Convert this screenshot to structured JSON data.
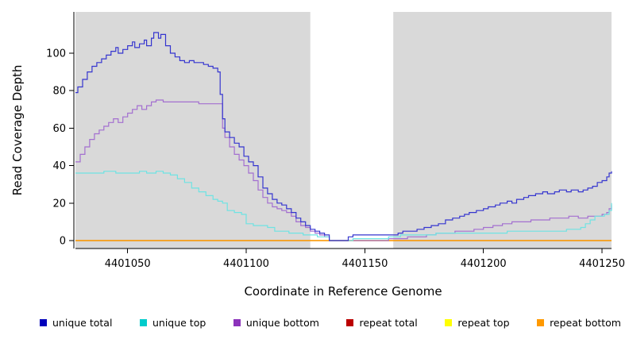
{
  "chart_data": {
    "type": "line",
    "title": "",
    "xlabel": "Coordinate in Reference Genome",
    "ylabel": "Read Coverage Depth",
    "xlim": [
      4401028,
      4401254
    ],
    "ylim": [
      0,
      113
    ],
    "x_ticks": [
      4401050,
      4401100,
      4401150,
      4401200,
      4401250
    ],
    "y_ticks": [
      0,
      20,
      40,
      60,
      80,
      100
    ],
    "plot_bg": "#d9d9d9",
    "gap_region": {
      "x0": 4401127,
      "x1": 4401162,
      "color": "#ffffff"
    },
    "step": true,
    "grid": false,
    "legend_position": "bottom",
    "series": [
      {
        "name": "repeat total",
        "color": "#cc0000",
        "points": [
          [
            4401028,
            0
          ],
          [
            4401254,
            0
          ]
        ]
      },
      {
        "name": "repeat top",
        "color": "#ffff00",
        "points": [
          [
            4401028,
            0
          ],
          [
            4401254,
            0
          ]
        ]
      },
      {
        "name": "repeat bottom",
        "color": "#ff9900",
        "points": [
          [
            4401028,
            0
          ],
          [
            4401254,
            0
          ]
        ]
      },
      {
        "name": "unique bottom",
        "color": "#a36fd0",
        "points": [
          [
            4401028,
            42
          ],
          [
            4401030,
            46
          ],
          [
            4401032,
            50
          ],
          [
            4401034,
            54
          ],
          [
            4401036,
            57
          ],
          [
            4401038,
            59
          ],
          [
            4401040,
            61
          ],
          [
            4401042,
            63
          ],
          [
            4401044,
            65
          ],
          [
            4401046,
            63
          ],
          [
            4401048,
            66
          ],
          [
            4401050,
            68
          ],
          [
            4401052,
            70
          ],
          [
            4401054,
            72
          ],
          [
            4401056,
            70
          ],
          [
            4401058,
            72
          ],
          [
            4401060,
            74
          ],
          [
            4401062,
            75
          ],
          [
            4401065,
            74
          ],
          [
            4401070,
            74
          ],
          [
            4401075,
            74
          ],
          [
            4401080,
            73
          ],
          [
            4401085,
            73
          ],
          [
            4401088,
            73
          ],
          [
            4401090,
            60
          ],
          [
            4401091,
            55
          ],
          [
            4401093,
            50
          ],
          [
            4401095,
            46
          ],
          [
            4401097,
            43
          ],
          [
            4401099,
            40
          ],
          [
            4401101,
            36
          ],
          [
            4401103,
            32
          ],
          [
            4401105,
            27
          ],
          [
            4401107,
            23
          ],
          [
            4401109,
            20
          ],
          [
            4401111,
            18
          ],
          [
            4401113,
            17
          ],
          [
            4401115,
            16
          ],
          [
            4401117,
            15
          ],
          [
            4401119,
            13
          ],
          [
            4401121,
            10
          ],
          [
            4401123,
            8
          ],
          [
            4401125,
            7
          ],
          [
            4401127,
            5
          ],
          [
            4401129,
            4
          ],
          [
            4401131,
            3
          ],
          [
            4401133,
            2
          ],
          [
            4401135,
            0
          ],
          [
            4401150,
            0
          ],
          [
            4401160,
            1
          ],
          [
            4401165,
            1
          ],
          [
            4401168,
            2
          ],
          [
            4401172,
            2
          ],
          [
            4401176,
            3
          ],
          [
            4401180,
            4
          ],
          [
            4401184,
            4
          ],
          [
            4401188,
            5
          ],
          [
            4401192,
            5
          ],
          [
            4401196,
            6
          ],
          [
            4401200,
            7
          ],
          [
            4401204,
            8
          ],
          [
            4401208,
            9
          ],
          [
            4401212,
            10
          ],
          [
            4401216,
            10
          ],
          [
            4401220,
            11
          ],
          [
            4401224,
            11
          ],
          [
            4401228,
            12
          ],
          [
            4401232,
            12
          ],
          [
            4401236,
            13
          ],
          [
            4401240,
            12
          ],
          [
            4401244,
            13
          ],
          [
            4401248,
            13
          ],
          [
            4401250,
            14
          ],
          [
            4401252,
            15
          ],
          [
            4401253,
            17
          ],
          [
            4401254,
            19
          ]
        ]
      },
      {
        "name": "unique top",
        "color": "#6fe3e3",
        "points": [
          [
            4401028,
            36
          ],
          [
            4401035,
            36
          ],
          [
            4401040,
            37
          ],
          [
            4401045,
            36
          ],
          [
            4401050,
            36
          ],
          [
            4401055,
            37
          ],
          [
            4401058,
            36
          ],
          [
            4401062,
            37
          ],
          [
            4401065,
            36
          ],
          [
            4401068,
            35
          ],
          [
            4401071,
            33
          ],
          [
            4401074,
            31
          ],
          [
            4401077,
            28
          ],
          [
            4401080,
            26
          ],
          [
            4401083,
            24
          ],
          [
            4401086,
            22
          ],
          [
            4401088,
            21
          ],
          [
            4401090,
            20
          ],
          [
            4401092,
            16
          ],
          [
            4401095,
            15
          ],
          [
            4401098,
            14
          ],
          [
            4401100,
            9
          ],
          [
            4401103,
            8
          ],
          [
            4401106,
            8
          ],
          [
            4401109,
            7
          ],
          [
            4401112,
            5
          ],
          [
            4401115,
            5
          ],
          [
            4401118,
            4
          ],
          [
            4401121,
            4
          ],
          [
            4401124,
            3
          ],
          [
            4401127,
            3
          ],
          [
            4401130,
            2
          ],
          [
            4401133,
            2
          ],
          [
            4401135,
            0
          ],
          [
            4401145,
            1
          ],
          [
            4401150,
            1
          ],
          [
            4401160,
            2
          ],
          [
            4401165,
            3
          ],
          [
            4401170,
            3
          ],
          [
            4401175,
            3
          ],
          [
            4401180,
            4
          ],
          [
            4401185,
            4
          ],
          [
            4401190,
            4
          ],
          [
            4401195,
            4
          ],
          [
            4401200,
            4
          ],
          [
            4401205,
            4
          ],
          [
            4401210,
            5
          ],
          [
            4401215,
            5
          ],
          [
            4401220,
            5
          ],
          [
            4401225,
            5
          ],
          [
            4401230,
            5
          ],
          [
            4401235,
            6
          ],
          [
            4401238,
            6
          ],
          [
            4401241,
            7
          ],
          [
            4401243,
            9
          ],
          [
            4401245,
            11
          ],
          [
            4401247,
            13
          ],
          [
            4401249,
            13
          ],
          [
            4401251,
            14
          ],
          [
            4401253,
            16
          ],
          [
            4401254,
            20
          ]
        ]
      },
      {
        "name": "unique total",
        "color": "#3535cf",
        "points": [
          [
            4401028,
            79
          ],
          [
            4401029,
            82
          ],
          [
            4401031,
            86
          ],
          [
            4401033,
            90
          ],
          [
            4401035,
            93
          ],
          [
            4401037,
            95
          ],
          [
            4401039,
            97
          ],
          [
            4401041,
            99
          ],
          [
            4401043,
            101
          ],
          [
            4401045,
            103
          ],
          [
            4401046,
            100
          ],
          [
            4401048,
            102
          ],
          [
            4401050,
            104
          ],
          [
            4401052,
            106
          ],
          [
            4401053,
            103
          ],
          [
            4401055,
            105
          ],
          [
            4401057,
            107
          ],
          [
            4401058,
            104
          ],
          [
            4401060,
            108
          ],
          [
            4401061,
            111
          ],
          [
            4401063,
            108
          ],
          [
            4401064,
            110
          ],
          [
            4401066,
            104
          ],
          [
            4401068,
            100
          ],
          [
            4401070,
            98
          ],
          [
            4401072,
            96
          ],
          [
            4401074,
            95
          ],
          [
            4401076,
            96
          ],
          [
            4401078,
            95
          ],
          [
            4401080,
            95
          ],
          [
            4401082,
            94
          ],
          [
            4401084,
            93
          ],
          [
            4401086,
            92
          ],
          [
            4401088,
            90
          ],
          [
            4401089,
            78
          ],
          [
            4401090,
            65
          ],
          [
            4401091,
            58
          ],
          [
            4401093,
            55
          ],
          [
            4401095,
            52
          ],
          [
            4401097,
            50
          ],
          [
            4401099,
            45
          ],
          [
            4401101,
            42
          ],
          [
            4401103,
            40
          ],
          [
            4401105,
            34
          ],
          [
            4401107,
            28
          ],
          [
            4401109,
            25
          ],
          [
            4401111,
            22
          ],
          [
            4401113,
            20
          ],
          [
            4401115,
            19
          ],
          [
            4401117,
            17
          ],
          [
            4401119,
            15
          ],
          [
            4401121,
            12
          ],
          [
            4401123,
            10
          ],
          [
            4401125,
            8
          ],
          [
            4401127,
            6
          ],
          [
            4401129,
            5
          ],
          [
            4401131,
            4
          ],
          [
            4401133,
            3
          ],
          [
            4401135,
            0
          ],
          [
            4401141,
            0
          ],
          [
            4401143,
            2
          ],
          [
            4401145,
            3
          ],
          [
            4401155,
            3
          ],
          [
            4401161,
            3
          ],
          [
            4401164,
            4
          ],
          [
            4401166,
            5
          ],
          [
            4401169,
            5
          ],
          [
            4401172,
            6
          ],
          [
            4401175,
            7
          ],
          [
            4401178,
            8
          ],
          [
            4401181,
            9
          ],
          [
            4401184,
            11
          ],
          [
            4401187,
            12
          ],
          [
            4401190,
            13
          ],
          [
            4401192,
            14
          ],
          [
            4401194,
            15
          ],
          [
            4401197,
            16
          ],
          [
            4401200,
            17
          ],
          [
            4401202,
            18
          ],
          [
            4401205,
            19
          ],
          [
            4401207,
            20
          ],
          [
            4401210,
            21
          ],
          [
            4401212,
            20
          ],
          [
            4401214,
            22
          ],
          [
            4401217,
            23
          ],
          [
            4401219,
            24
          ],
          [
            4401222,
            25
          ],
          [
            4401225,
            26
          ],
          [
            4401227,
            25
          ],
          [
            4401230,
            26
          ],
          [
            4401232,
            27
          ],
          [
            4401235,
            26
          ],
          [
            4401237,
            27
          ],
          [
            4401240,
            26
          ],
          [
            4401242,
            27
          ],
          [
            4401244,
            28
          ],
          [
            4401246,
            29
          ],
          [
            4401248,
            31
          ],
          [
            4401250,
            32
          ],
          [
            4401252,
            34
          ],
          [
            4401253,
            36
          ],
          [
            4401254,
            37
          ]
        ]
      }
    ],
    "legend": [
      {
        "label": "unique total",
        "color": "#0000bb"
      },
      {
        "label": "unique top",
        "color": "#00cccc"
      },
      {
        "label": "unique bottom",
        "color": "#8c33bb"
      },
      {
        "label": "repeat total",
        "color": "#bb0000"
      },
      {
        "label": "repeat top",
        "color": "#ffff00"
      },
      {
        "label": "repeat bottom",
        "color": "#ff9900"
      }
    ]
  }
}
